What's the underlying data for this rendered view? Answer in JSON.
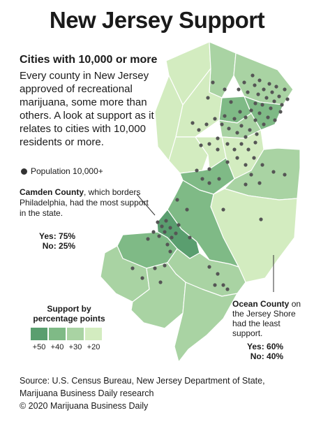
{
  "title": "New Jersey Support",
  "subtitle": "Cities with 10,000 or more",
  "intro": "Every county in New Jersey approved of recreational marijuana, some more than others. A look at support as it relates to cities with 10,000 residents or more.",
  "legend_point": "Population 10,000+",
  "camden": {
    "name": "Camden County",
    "text": ", which borders Philadelphia, had the most support in the state.",
    "yes": "Yes: 75%",
    "no": "No: 25%"
  },
  "ocean": {
    "name": "Ocean County",
    "text": " on the Jersey Shore had the least support.",
    "yes": "Yes: 60%",
    "no": "No: 40%"
  },
  "scale": {
    "title": "Support by percentage points",
    "items": [
      {
        "label": "+50",
        "color": "#5a9e6f"
      },
      {
        "label": "+40",
        "color": "#7fba86"
      },
      {
        "label": "+30",
        "color": "#a9d3a3"
      },
      {
        "label": "+20",
        "color": "#d3ecc0"
      }
    ]
  },
  "source_line1": "Source: U.S. Census Bureau, New Jersey Department of State,",
  "source_line2": "Marijuana Business Daily research",
  "copyright": "© 2020 Marijuana Business Daily"
}
